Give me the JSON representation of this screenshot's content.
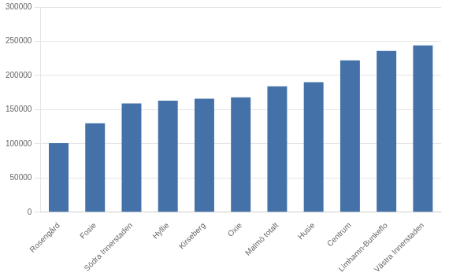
{
  "chart_data": {
    "type": "bar",
    "categories": [
      "Rosengård",
      "Fosie",
      "Södra Innerstaden",
      "Hyllie",
      "Kirseberg",
      "Oxie",
      "Malmö totalt",
      "Husie",
      "Centrum",
      "Limhamn-Bunkeflo",
      "Västra Innerstaden"
    ],
    "values": [
      101000,
      130000,
      159000,
      163000,
      166000,
      168000,
      184000,
      190000,
      222000,
      236000,
      244000
    ],
    "color": "#4472a8",
    "ylim": [
      0,
      300000
    ],
    "yticks": [
      0,
      50000,
      100000,
      150000,
      200000,
      250000,
      300000
    ],
    "grid": true
  }
}
